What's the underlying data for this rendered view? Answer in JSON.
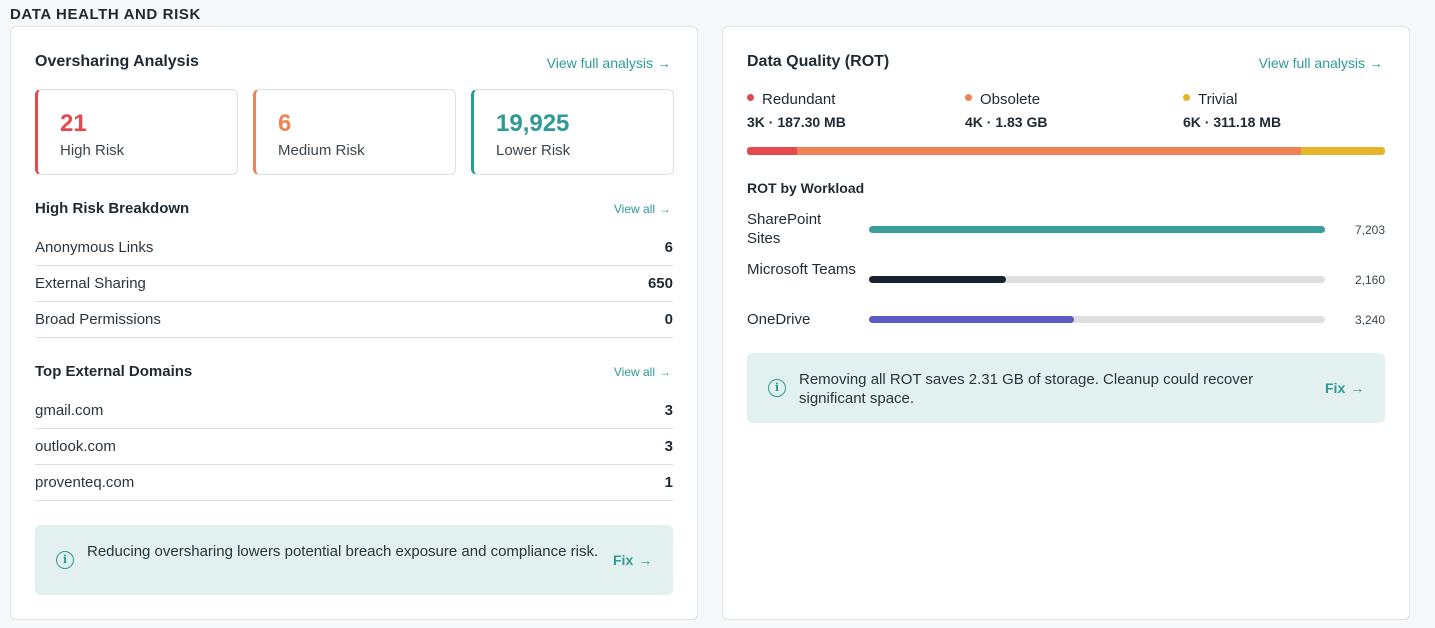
{
  "section_title": "DATA HEALTH AND RISK",
  "oversharing": {
    "title": "Oversharing Analysis",
    "view_full": "View full analysis",
    "stats": [
      {
        "value": "21",
        "label": "High Risk",
        "color": "#e5484d"
      },
      {
        "value": "6",
        "label": "Medium Risk",
        "color": "#ef8354"
      },
      {
        "value": "19,925",
        "label": "Lower Risk",
        "color": "#2d9a95"
      }
    ],
    "breakdown": {
      "title": "High Risk Breakdown",
      "view_all": "View all",
      "rows": [
        {
          "label": "Anonymous Links",
          "value": "6"
        },
        {
          "label": "External Sharing",
          "value": "650"
        },
        {
          "label": "Broad Permissions",
          "value": "0"
        }
      ]
    },
    "domains": {
      "title": "Top External Domains",
      "view_all": "View all",
      "rows": [
        {
          "label": "gmail.com",
          "value": "3"
        },
        {
          "label": "outlook.com",
          "value": "3"
        },
        {
          "label": "proventeq.com",
          "value": "1"
        }
      ]
    },
    "info": {
      "text": "Reducing oversharing lowers potential breach exposure and compliance risk.",
      "fix": "Fix"
    }
  },
  "quality": {
    "title": "Data Quality (ROT)",
    "view_full": "View full analysis",
    "legend": [
      {
        "name": "Redundant",
        "value": "3K · 187.30 MB",
        "color": "#e5484d",
        "share": 0.079
      },
      {
        "name": "Obsolete",
        "value": "4K · 1.83 GB",
        "color": "#ef8354",
        "share": 0.79
      },
      {
        "name": "Trivial",
        "value": "6K · 311.18 MB",
        "color": "#e6b62a",
        "share": 0.131
      }
    ],
    "workload_title": "ROT by Workload",
    "workloads": [
      {
        "name": "SharePoint Sites",
        "value": "7,203",
        "fraction": 1.0,
        "color": "#3a9e9a"
      },
      {
        "name": "Microsoft Teams",
        "value": "2,160",
        "fraction": 0.3,
        "color": "#15232f"
      },
      {
        "name": "OneDrive",
        "value": "3,240",
        "fraction": 0.45,
        "color": "#5b5bc4"
      }
    ],
    "info": {
      "text": "Removing all ROT saves 2.31 GB of storage. Cleanup could recover significant space.",
      "fix": "Fix"
    }
  },
  "icons": {
    "arrow": "→",
    "info": "i"
  }
}
